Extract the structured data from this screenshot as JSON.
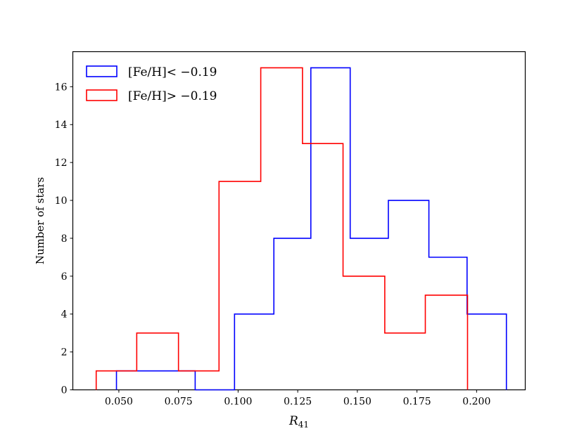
{
  "chart_data": {
    "type": "histogram",
    "title": "",
    "xlabel": "R",
    "xlabel_subscript": "41",
    "ylabel": "Number of stars",
    "xlim": [
      0.0307,
      0.2204
    ],
    "ylim": [
      0,
      17.85
    ],
    "xticks": [
      0.05,
      0.075,
      0.1,
      0.125,
      0.15,
      0.175,
      0.2
    ],
    "xtick_labels": [
      "0.050",
      "0.075",
      "0.100",
      "0.125",
      "0.150",
      "0.175",
      "0.200"
    ],
    "yticks": [
      0,
      2,
      4,
      6,
      8,
      10,
      12,
      14,
      16
    ],
    "ytick_labels": [
      "0",
      "2",
      "4",
      "6",
      "8",
      "10",
      "12",
      "14",
      "16"
    ],
    "grid": false,
    "legend_position": "top-left",
    "series": [
      {
        "name": "[Fe/H]< −0.19",
        "color": "#0000ff",
        "bin_edges": [
          0.049,
          0.0655,
          0.082,
          0.0985,
          0.115,
          0.1305,
          0.147,
          0.163,
          0.18,
          0.196,
          0.2125
        ],
        "counts": [
          1,
          1,
          0,
          4,
          8,
          17,
          8,
          10,
          7,
          4
        ]
      },
      {
        "name": "[Fe/H]> −0.19",
        "color": "#ff0000",
        "bin_edges": [
          0.0405,
          0.0575,
          0.075,
          0.092,
          0.1095,
          0.127,
          0.144,
          0.1615,
          0.1785,
          0.1962
        ],
        "counts": [
          1,
          3,
          1,
          11,
          17,
          13,
          6,
          3,
          5
        ]
      }
    ]
  }
}
